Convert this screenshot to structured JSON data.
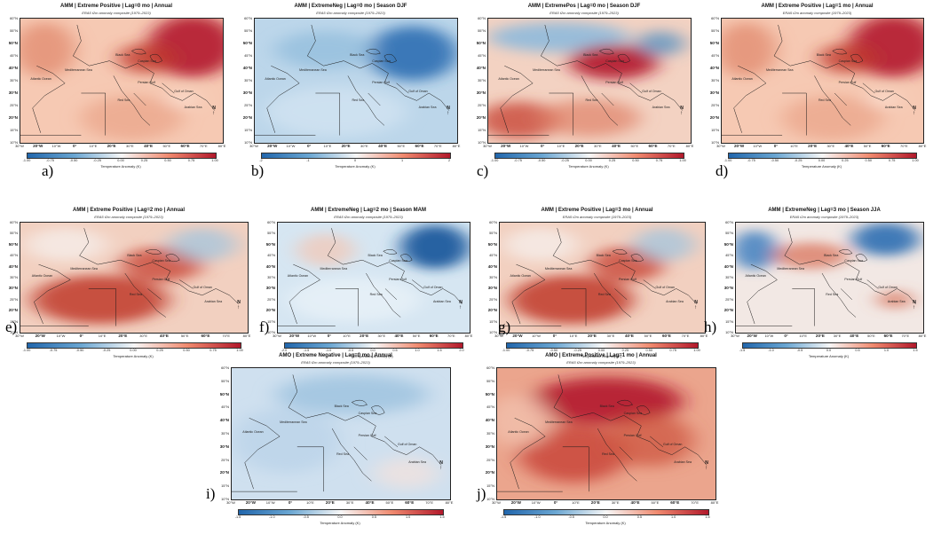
{
  "subtitle": "ERA5 t2m anomaly composite (1979–2023)",
  "lat_labels": [
    "60°N",
    "55°N",
    "50°N",
    "45°N",
    "40°N",
    "35°N",
    "30°N",
    "25°N",
    "20°N",
    "15°N",
    "10°N"
  ],
  "lon_labels": [
    "30°W",
    "20°W",
    "10°W",
    "0°",
    "10°E",
    "20°E",
    "30°E",
    "40°E",
    "50°E",
    "60°E",
    "70°E",
    "80°E"
  ],
  "colorbar_label": "Temperature Anomaly (K)",
  "north_label": "N",
  "palette": {
    "cold": "#2166ac",
    "neutral": "#f7f7f7",
    "warm": "#b2182b",
    "land_border": "#1a1a1a"
  },
  "seas": [
    "Black Sea",
    "Caspian Sea",
    "Mediterranean Sea",
    "Atlantic Ocean",
    "Persian Gulf",
    "Gulf of Oman",
    "Red Sea",
    "Arabian Sea"
  ],
  "panels": [
    {
      "letter": "a)",
      "title": "AMM | Extreme Positive | Lag=0 mo | Annual",
      "ticks": [
        "-1.00",
        "-0.75",
        "-0.50",
        "-0.25",
        "0.00",
        "0.25",
        "0.50",
        "0.75",
        "1.00"
      ],
      "pattern": "warm"
    },
    {
      "letter": "b)",
      "title": "AMM | ExtremeNeg | Lag=0 mo | Season DJF",
      "ticks": [
        "-2",
        "-1",
        "0",
        "1",
        "2"
      ],
      "pattern": "cold"
    },
    {
      "letter": "c)",
      "title": "AMM | ExtremePos | Lag=0 mo | Season DJF",
      "ticks": [
        "-1.00",
        "-0.75",
        "-0.50",
        "-0.25",
        "0.00",
        "0.25",
        "0.50",
        "0.75",
        "1.00"
      ],
      "pattern": "mixed_warm_south"
    },
    {
      "letter": "d)",
      "title": "AMM | Extreme Positive | Lag=1 mo | Annual",
      "ticks": [
        "-1.00",
        "-0.75",
        "-0.50",
        "-0.25",
        "0.00",
        "0.25",
        "0.50",
        "0.75",
        "1.00"
      ],
      "pattern": "warm"
    },
    {
      "letter": "e)",
      "title": "AMM | Extreme Positive | Lag=2 mo | Annual",
      "ticks": [
        "-1.00",
        "-0.75",
        "-0.50",
        "-0.25",
        "0.00",
        "0.25",
        "0.50",
        "0.75",
        "1.00"
      ],
      "pattern": "warm_south"
    },
    {
      "letter": "f)",
      "title": "AMM | ExtremeNeg | Lag=2 mo | Season MAM",
      "ticks": [
        "-2.0",
        "-1.5",
        "-1.0",
        "-0.5",
        "0.0",
        "0.5",
        "1.0",
        "1.5",
        "2.0"
      ],
      "pattern": "cold_ne"
    },
    {
      "letter": "g)",
      "title": "AMM | Extreme Positive | Lag=3 mo | Annual",
      "ticks": [
        "-1.00",
        "-0.75",
        "-0.50",
        "-0.25",
        "0.00",
        "0.25",
        "0.50",
        "0.75",
        "1.00"
      ],
      "pattern": "warm_south"
    },
    {
      "letter": "h)",
      "title": "AMM | ExtremeNeg | Lag=3 mo | Season JJA",
      "ticks": [
        "-1.5",
        "-1.0",
        "-0.5",
        "0.0",
        "0.5",
        "1.0",
        "1.5"
      ],
      "pattern": "mixed_cold_ne"
    },
    {
      "letter": "i)",
      "title": "AMO | Extreme Negative | Lag=0 mo | Annual",
      "ticks": [
        "-1.5",
        "-1.0",
        "-0.5",
        "0.0",
        "0.5",
        "1.0",
        "1.5"
      ],
      "pattern": "cold_light"
    },
    {
      "letter": "j)",
      "title": "AMO | Extreme Positive | Lag=1 mo | Annual",
      "ticks": [
        "-1.5",
        "-1.0",
        "-0.5",
        "0.0",
        "0.5",
        "1.0",
        "1.5"
      ],
      "pattern": "warm_strong"
    }
  ]
}
